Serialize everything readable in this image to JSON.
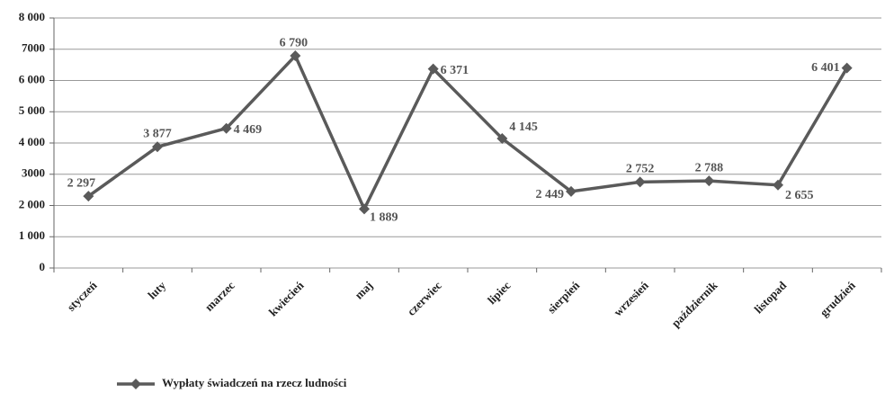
{
  "chart_data": {
    "type": "line",
    "categories": [
      "styczeń",
      "luty",
      "marzec",
      "kwiecień",
      "maj",
      "czerwiec",
      "lipiec",
      "sierpień",
      "wrzesień",
      "październik",
      "listopad",
      "grudzień"
    ],
    "series": [
      {
        "name": "Wypłaty świadczeń na rzecz ludności",
        "color": "#5a5a5a",
        "values": [
          2297,
          3877,
          4469,
          6790,
          1889,
          6371,
          4145,
          2449,
          2752,
          2788,
          2655,
          6401
        ],
        "value_labels": [
          "2 297",
          "3 877",
          "4 469",
          "6 790",
          "1 889",
          "6 371",
          "4 145",
          "2 449",
          "2 752",
          "2 788",
          "2 655",
          "6 401"
        ]
      }
    ],
    "ylim": [
      0,
      8000
    ],
    "yticks": [
      0,
      {
        "value": 1000,
        "label": "1 000"
      },
      {
        "value": 2000,
        "label": "2 000"
      },
      {
        "value": 3000,
        "label": "3000"
      },
      {
        "value": 4000,
        "label": "4 000"
      },
      {
        "value": 5000,
        "label": "5 000"
      },
      {
        "value": 6000,
        "label": "6 000"
      },
      {
        "value": 7000,
        "label": "7000"
      },
      {
        "value": 8000,
        "label": "8 000"
      }
    ],
    "grid": true,
    "legend": "bottom"
  }
}
